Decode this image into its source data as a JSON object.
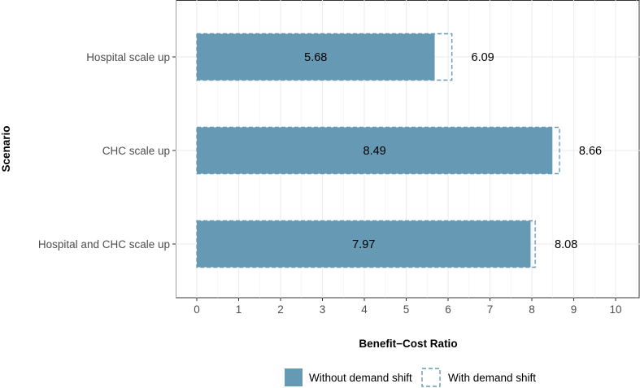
{
  "chart_data": {
    "type": "bar",
    "orientation": "horizontal",
    "categories": [
      "Hospital scale up",
      "CHC scale up",
      "Hospital and CHC scale up"
    ],
    "series": [
      {
        "name": "Without demand shift",
        "values": [
          5.68,
          8.49,
          7.97
        ],
        "style": "filled",
        "color": "#6699B4"
      },
      {
        "name": "With demand shift",
        "values": [
          6.09,
          8.66,
          8.08
        ],
        "style": "dashed-outline",
        "color": "#6699B4"
      }
    ],
    "inner_labels": [
      "5.68",
      "8.49",
      "7.97"
    ],
    "outer_labels": [
      "6.09",
      "8.66",
      "8.08"
    ],
    "xlabel": "Benefit−Cost Ratio",
    "ylabel": "Scenario",
    "xlim": [
      -0.5,
      10.5
    ],
    "xticks": [
      0,
      1,
      2,
      3,
      4,
      5,
      6,
      7,
      8,
      9,
      10
    ],
    "xtick_labels": [
      "0",
      "1",
      "2",
      "3",
      "4",
      "5",
      "6",
      "7",
      "8",
      "9",
      "10"
    ],
    "grid": true,
    "legend_position": "bottom"
  },
  "legend": {
    "items": [
      {
        "label": "Without demand shift",
        "style": "filled"
      },
      {
        "label": "With demand shift",
        "style": "dashed-outline"
      }
    ]
  }
}
